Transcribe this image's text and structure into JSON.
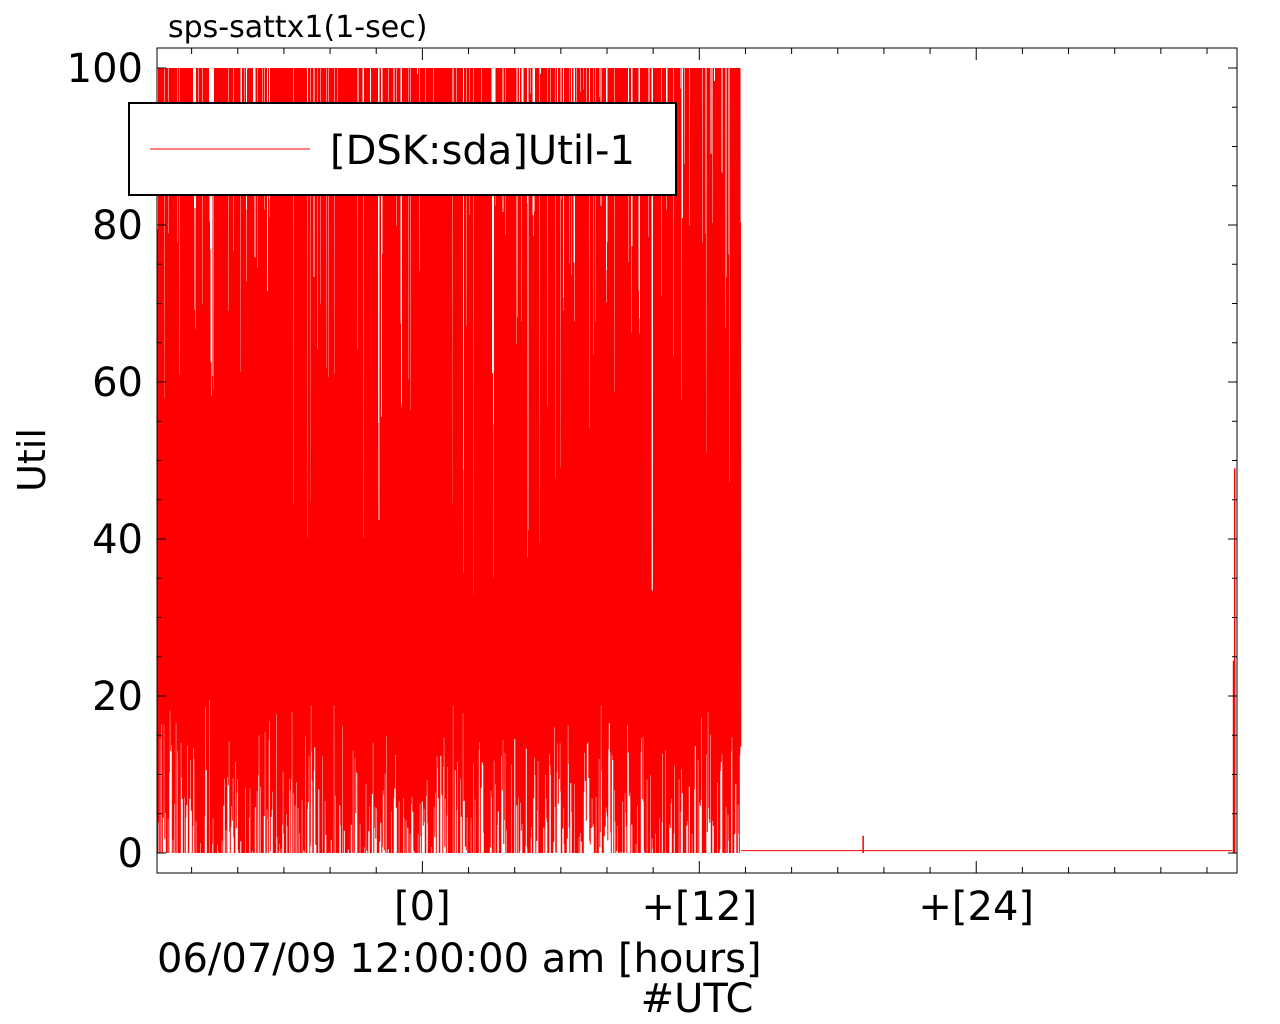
{
  "chart_data": {
    "type": "line",
    "title": "sps-sattx1(1-sec)",
    "ylabel": "Util",
    "xlabel_line1": "06/07/09 12:00:00 am [hours]",
    "xlabel_line2": "#UTC",
    "ylim": [
      0,
      100
    ],
    "xlim_hours": [
      -11.5,
      35.3
    ],
    "y_ticks": [
      0,
      20,
      40,
      60,
      80,
      100
    ],
    "y_tick_labels": [
      "0",
      "20",
      "40",
      "60",
      "80",
      "100"
    ],
    "x_ticks": [
      0,
      12,
      24
    ],
    "x_tick_labels": [
      "[0]",
      "+[12]",
      "+[24]"
    ],
    "grid": false,
    "legend": {
      "position": "top-left",
      "entries": [
        "[DSK:sda]Util-1"
      ]
    },
    "series": [
      {
        "name": "[DSK:sda]Util-1",
        "color": "#ff0000",
        "segments": [
          {
            "description": "dense rapid oscillation between 0 and 100",
            "x_start": -11.5,
            "x_end": 13.8,
            "min": 0,
            "max": 100
          },
          {
            "description": "flat near zero",
            "x_start": 13.8,
            "x_end": 35.1,
            "value": 0.3
          }
        ],
        "spikes": [
          {
            "x": 19.1,
            "y": 2.2
          },
          {
            "x": 35.15,
            "y": 24.5
          },
          {
            "x": 35.2,
            "y": 49
          }
        ]
      }
    ]
  }
}
